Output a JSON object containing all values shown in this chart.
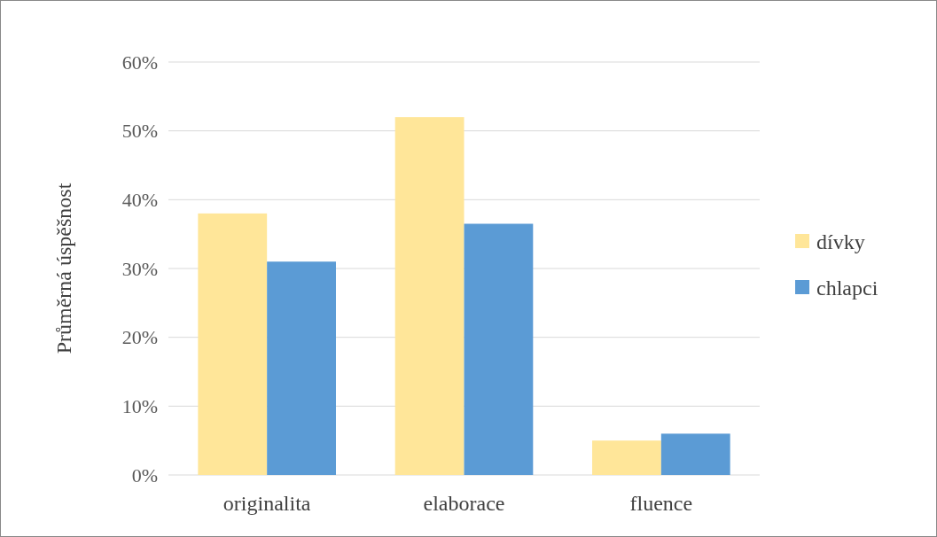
{
  "chart_data": {
    "type": "bar",
    "ylabel": "Průměrná úspěšnost",
    "categories": [
      "originalita",
      "elaborace",
      "fluence"
    ],
    "series": [
      {
        "name": "dívky",
        "color": "#ffe699",
        "values": [
          38,
          52,
          5
        ]
      },
      {
        "name": "chlapci",
        "color": "#5b9bd5",
        "values": [
          31,
          36.5,
          6
        ]
      }
    ],
    "ylim": [
      0,
      60
    ],
    "yticks": [
      {
        "value": 0,
        "label": "0%"
      },
      {
        "value": 10,
        "label": "10%"
      },
      {
        "value": 20,
        "label": "20%"
      },
      {
        "value": 30,
        "label": "30%"
      },
      {
        "value": 40,
        "label": "40%"
      },
      {
        "value": 50,
        "label": "50%"
      },
      {
        "value": 60,
        "label": "60%"
      }
    ],
    "grid": "y",
    "legend": "right"
  }
}
